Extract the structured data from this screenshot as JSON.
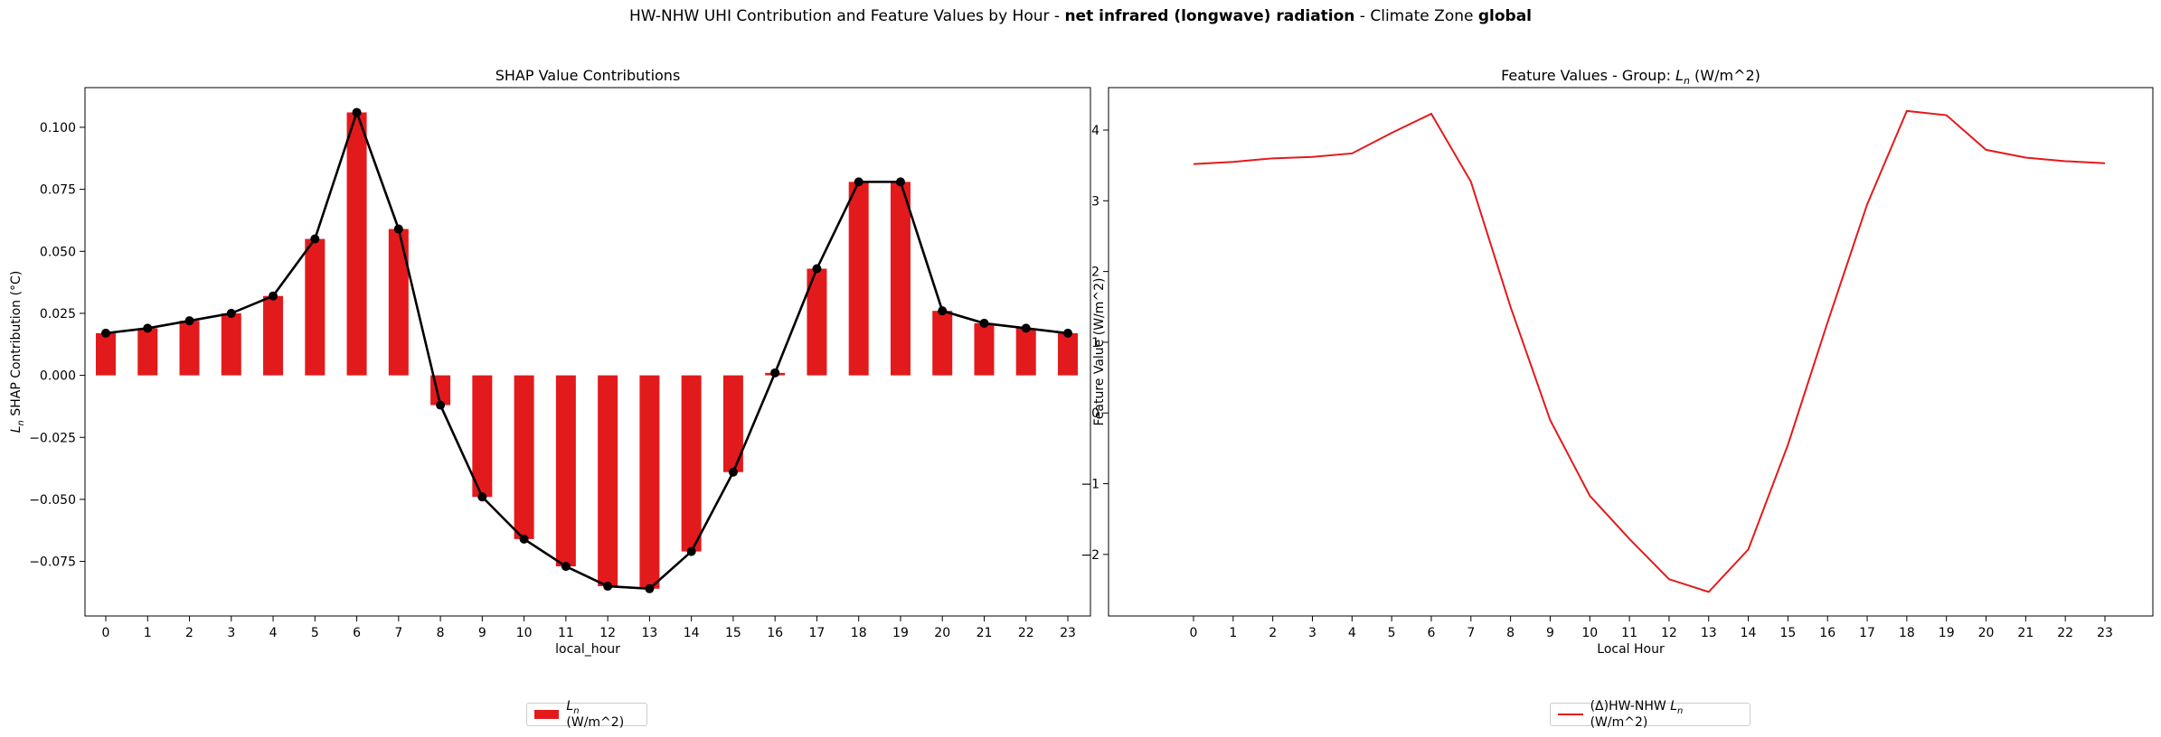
{
  "figure": {
    "title_pre": "HW-NHW UHI Contribution and Feature Values by Hour - ",
    "title_feature": "net infrared (longwave) radiation",
    "title_mid": " - Climate Zone ",
    "title_zone": "global"
  },
  "colors": {
    "bar": "#e31a1c",
    "line": "#000000",
    "feature_line": "#e31a1c"
  },
  "chart_data": [
    {
      "type": "bar",
      "title": "SHAP Value Contributions",
      "xlabel": "local_hour",
      "ylabel_symbol": "L",
      "ylabel_sub": "n",
      "ylabel_rest": " SHAP Contribution (°C)",
      "categories": [
        "0",
        "1",
        "2",
        "3",
        "4",
        "5",
        "6",
        "7",
        "8",
        "9",
        "10",
        "11",
        "12",
        "13",
        "14",
        "15",
        "16",
        "17",
        "18",
        "19",
        "20",
        "21",
        "22",
        "23"
      ],
      "values": [
        0.017,
        0.019,
        0.022,
        0.025,
        0.032,
        0.055,
        0.106,
        0.059,
        -0.012,
        -0.049,
        -0.066,
        -0.077,
        -0.085,
        -0.086,
        -0.071,
        -0.039,
        0.001,
        0.043,
        0.078,
        0.078,
        0.026,
        0.021,
        0.019,
        0.017
      ],
      "ylim": [
        -0.097,
        0.116
      ],
      "yticks": [
        "0.100",
        "0.075",
        "0.050",
        "0.025",
        "0.000",
        "−0.025",
        "−0.050",
        "−0.075"
      ],
      "ytick_values": [
        0.1,
        0.075,
        0.05,
        0.025,
        0.0,
        -0.025,
        -0.05,
        -0.075
      ],
      "overlay_line": true,
      "legend": {
        "symbol": "L",
        "sub": "n",
        "rest": " (W/m^2)",
        "placement": "bottom-center"
      }
    },
    {
      "type": "line",
      "title_pre": "Feature Values - Group: ",
      "title_symbol": "L",
      "title_sub": "n",
      "title_rest": " (W/m^2)",
      "xlabel": "Local Hour",
      "ylabel": "Feature Value (W/m^2)",
      "x": [
        0,
        1,
        2,
        3,
        4,
        5,
        6,
        7,
        8,
        9,
        10,
        11,
        12,
        13,
        14,
        15,
        16,
        17,
        18,
        19,
        20,
        21,
        22,
        23
      ],
      "xticks": [
        "0",
        "1",
        "2",
        "3",
        "4",
        "5",
        "6",
        "7",
        "8",
        "9",
        "10",
        "11",
        "12",
        "13",
        "14",
        "15",
        "16",
        "17",
        "18",
        "19",
        "20",
        "21",
        "22",
        "23"
      ],
      "series": [
        {
          "values": [
            3.52,
            3.55,
            3.6,
            3.62,
            3.67,
            3.96,
            4.23,
            3.27,
            1.5,
            -0.1,
            -1.17,
            -1.78,
            -2.35,
            -2.53,
            -1.93,
            -0.45,
            1.28,
            2.95,
            4.27,
            4.21,
            3.72,
            3.61,
            3.56,
            3.53
          ]
        }
      ],
      "ylim": [
        -2.87,
        4.6
      ],
      "yticks": [
        "4",
        "3",
        "2",
        "1",
        "0",
        "−1",
        "−2"
      ],
      "ytick_values": [
        4,
        3,
        2,
        1,
        0,
        -1,
        -2
      ],
      "legend": {
        "pre": "(Δ)HW-NHW ",
        "symbol": "L",
        "sub": "n",
        "rest": " (W/m^2)",
        "placement": "bottom-center"
      }
    }
  ]
}
